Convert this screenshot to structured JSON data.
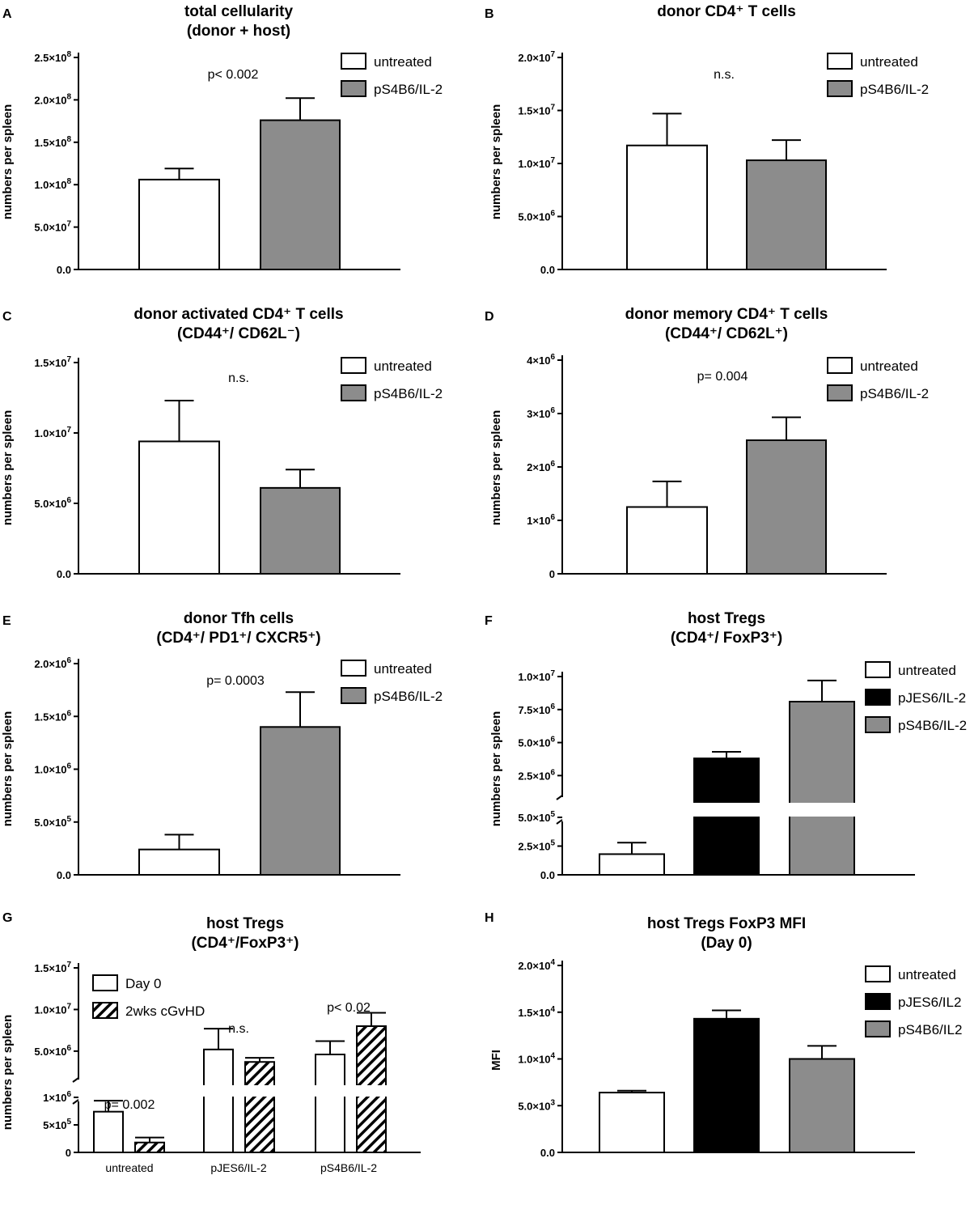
{
  "panels": [
    {
      "letter": "A",
      "title": [
        "total cellularity",
        "(donor + host)"
      ],
      "ylabel": "numbers per spleen",
      "ylim": [
        0,
        250000000
      ],
      "ticks": [
        {
          "v": 0,
          "m": "0.0"
        },
        {
          "v": 50000000,
          "m": "5.0",
          "e": "7"
        },
        {
          "v": 100000000,
          "m": "1.0",
          "e": "8"
        },
        {
          "v": 150000000,
          "m": "1.5",
          "e": "8"
        },
        {
          "v": 200000000,
          "m": "2.0",
          "e": "8"
        },
        {
          "v": 250000000,
          "m": "2.5",
          "e": "8"
        }
      ],
      "legend": [
        {
          "label": "untreated",
          "color": "#ffffff"
        },
        {
          "label": "pS4B6/IL-2",
          "color": "#8c8c8c"
        }
      ],
      "pvalue": "p< 0.002",
      "chart_data": {
        "type": "bar",
        "title": "total cellularity (donor + host)",
        "ylabel": "numbers per spleen",
        "categories": [
          "untreated",
          "pS4B6/IL-2"
        ],
        "values": [
          106000000,
          176000000
        ],
        "error": [
          13000000,
          26000000
        ],
        "colors": [
          "#ffffff",
          "#8c8c8c"
        ]
      }
    },
    {
      "letter": "B",
      "title": [
        "donor CD4⁺ T cells"
      ],
      "ylabel": "numbers per spleen",
      "ylim": [
        0,
        20000000
      ],
      "ticks": [
        {
          "v": 0,
          "m": "0.0"
        },
        {
          "v": 5000000,
          "m": "5.0",
          "e": "6"
        },
        {
          "v": 10000000,
          "m": "1.0",
          "e": "7"
        },
        {
          "v": 15000000,
          "m": "1.5",
          "e": "7"
        },
        {
          "v": 20000000,
          "m": "2.0",
          "e": "7"
        }
      ],
      "legend": [
        {
          "label": "untreated",
          "color": "#ffffff"
        },
        {
          "label": "pS4B6/IL-2",
          "color": "#8c8c8c"
        }
      ],
      "pvalue": "n.s.",
      "chart_data": {
        "type": "bar",
        "title": "donor CD4+ T cells",
        "ylabel": "numbers per spleen",
        "categories": [
          "untreated",
          "pS4B6/IL-2"
        ],
        "values": [
          11700000,
          10300000
        ],
        "error": [
          3000000,
          1900000
        ],
        "colors": [
          "#ffffff",
          "#8c8c8c"
        ]
      }
    },
    {
      "letter": "C",
      "title": [
        "donor activated CD4⁺ T cells",
        "(CD44⁺/ CD62L⁻)"
      ],
      "ylabel": "numbers per spleen",
      "ylim": [
        0,
        15000000
      ],
      "ticks": [
        {
          "v": 0,
          "m": "0.0"
        },
        {
          "v": 5000000,
          "m": "5.0",
          "e": "6"
        },
        {
          "v": 10000000,
          "m": "1.0",
          "e": "7"
        },
        {
          "v": 15000000,
          "m": "1.5",
          "e": "7"
        }
      ],
      "legend": [
        {
          "label": "untreated",
          "color": "#ffffff"
        },
        {
          "label": "pS4B6/IL-2",
          "color": "#8c8c8c"
        }
      ],
      "pvalue": "n.s.",
      "chart_data": {
        "type": "bar",
        "title": "donor activated CD4+ T cells (CD44+/ CD62L-)",
        "ylabel": "numbers per spleen",
        "categories": [
          "untreated",
          "pS4B6/IL-2"
        ],
        "values": [
          9400000,
          6100000
        ],
        "error": [
          2900000,
          1300000
        ],
        "colors": [
          "#ffffff",
          "#8c8c8c"
        ]
      }
    },
    {
      "letter": "D",
      "title": [
        "donor memory CD4⁺  T cells",
        "(CD44⁺/ CD62L⁺)"
      ],
      "ylabel": "numbers per spleen",
      "ylim": [
        0,
        4000000
      ],
      "ticks": [
        {
          "v": 0,
          "m": "0"
        },
        {
          "v": 1000000,
          "m": "1",
          "e": "6"
        },
        {
          "v": 2000000,
          "m": "2",
          "e": "6"
        },
        {
          "v": 3000000,
          "m": "3",
          "e": "6"
        },
        {
          "v": 4000000,
          "m": "4",
          "e": "6"
        }
      ],
      "legend": [
        {
          "label": "untreated",
          "color": "#ffffff"
        },
        {
          "label": "pS4B6/IL-2",
          "color": "#8c8c8c"
        }
      ],
      "pvalue": "p= 0.004",
      "chart_data": {
        "type": "bar",
        "title": "donor memory CD4+ T cells (CD44+/ CD62L+)",
        "ylabel": "numbers per spleen",
        "categories": [
          "untreated",
          "pS4B6/IL-2"
        ],
        "values": [
          1250000,
          2500000
        ],
        "error": [
          480000,
          430000
        ],
        "colors": [
          "#ffffff",
          "#8c8c8c"
        ]
      }
    },
    {
      "letter": "E",
      "title": [
        "donor Tfh cells",
        "(CD4⁺/ PD1⁺/ CXCR5⁺)"
      ],
      "ylabel": "numbers per spleen",
      "ylim": [
        0,
        2000000
      ],
      "ticks": [
        {
          "v": 0,
          "m": "0.0"
        },
        {
          "v": 500000,
          "m": "5.0",
          "e": "5"
        },
        {
          "v": 1000000,
          "m": "1.0",
          "e": "6"
        },
        {
          "v": 1500000,
          "m": "1.5",
          "e": "6"
        },
        {
          "v": 2000000,
          "m": "2.0",
          "e": "6"
        }
      ],
      "legend": [
        {
          "label": "untreated",
          "color": "#ffffff"
        },
        {
          "label": "pS4B6/IL-2",
          "color": "#8c8c8c"
        }
      ],
      "pvalue": "p= 0.0003",
      "chart_data": {
        "type": "bar",
        "title": "donor Tfh cells (CD4+/ PD1+/ CXCR5+)",
        "ylabel": "numbers per spleen",
        "categories": [
          "untreated",
          "pS4B6/IL-2"
        ],
        "values": [
          240000,
          1400000
        ],
        "error": [
          140000,
          330000
        ],
        "colors": [
          "#ffffff",
          "#8c8c8c"
        ]
      }
    },
    {
      "letter": "F",
      "title": [
        "host Tregs",
        "(CD4⁺/ FoxP3⁺)"
      ],
      "ylabel": "numbers per spleen",
      "broken": true,
      "lower": [
        0,
        500000
      ],
      "upper": [
        500000,
        10000000
      ],
      "ticks": [
        {
          "v": 0,
          "m": "0.0"
        },
        {
          "v": 250000,
          "m": "2.5",
          "e": "5"
        },
        {
          "v": 500000,
          "m": "5.0",
          "e": "5"
        },
        {
          "v": 2500000,
          "m": "2.5",
          "e": "6"
        },
        {
          "v": 5000000,
          "m": "5.0",
          "e": "6"
        },
        {
          "v": 7500000,
          "m": "7.5",
          "e": "6"
        },
        {
          "v": 10000000,
          "m": "1.0",
          "e": "7"
        }
      ],
      "legend": [
        {
          "label": "untreated",
          "color": "#ffffff"
        },
        {
          "label": "pJES6/IL-2",
          "color": "#000000"
        },
        {
          "label": "pS4B6/IL-2",
          "color": "#8c8c8c"
        }
      ],
      "chart_data": {
        "type": "bar",
        "title": "host Tregs (CD4+/ FoxP3+)",
        "ylabel": "numbers per spleen",
        "categories": [
          "untreated",
          "pJES6/IL-2",
          "pS4B6/IL-2"
        ],
        "values": [
          180000,
          3800000,
          8100000
        ],
        "error": [
          100000,
          500000,
          1600000
        ],
        "colors": [
          "#ffffff",
          "#000000",
          "#8c8c8c"
        ]
      }
    },
    {
      "letter": "G",
      "title": [
        "host Tregs",
        "(CD4⁺/FoxP3⁺)"
      ],
      "ylabel": "numbers per spleen",
      "broken": true,
      "lower": [
        0,
        1000000
      ],
      "upper": [
        1000000,
        15000000
      ],
      "ticks": [
        {
          "v": 0,
          "m": "0"
        },
        {
          "v": 500000,
          "m": "5",
          "e": "5"
        },
        {
          "v": 1000000,
          "m": "1",
          "e": "6"
        },
        {
          "v": 5000000,
          "m": "5.0",
          "e": "6"
        },
        {
          "v": 10000000,
          "m": "1.0",
          "e": "7"
        },
        {
          "v": 15000000,
          "m": "1.5",
          "e": "7"
        }
      ],
      "legend": [
        {
          "label": "Day 0",
          "color": "#ffffff"
        },
        {
          "label": "2wks cGvHD",
          "color": "hatch"
        }
      ],
      "group_pvalues": [
        "p= 0.002",
        "n.s.",
        "p< 0.02"
      ],
      "chart_data": {
        "type": "bar",
        "title": "host Tregs (CD4+/FoxP3+)",
        "ylabel": "numbers per spleen",
        "categories": [
          "untreated",
          "pJES6/IL-2",
          "pS4B6/IL-2"
        ],
        "series": [
          {
            "name": "Day 0",
            "values": [
              740000,
              5200000,
              4600000
            ],
            "error": [
              200000,
              2500000,
              1600000
            ]
          },
          {
            "name": "2wks cGvHD",
            "values": [
              180000,
              3700000,
              8000000
            ],
            "error": [
              90000,
              500000,
              1600000
            ]
          }
        ]
      }
    },
    {
      "letter": "H",
      "title": [
        "host Tregs FoxP3 MFI",
        "(Day 0)"
      ],
      "ylabel": "MFI",
      "ylim": [
        0,
        20000
      ],
      "ticks": [
        {
          "v": 0,
          "m": "0.0"
        },
        {
          "v": 5000,
          "m": "5.0",
          "e": "3"
        },
        {
          "v": 10000,
          "m": "1.0",
          "e": "4"
        },
        {
          "v": 15000,
          "m": "1.5",
          "e": "4"
        },
        {
          "v": 20000,
          "m": "2.0",
          "e": "4"
        }
      ],
      "legend": [
        {
          "label": "untreated",
          "color": "#ffffff"
        },
        {
          "label": "pJES6/IL2",
          "color": "#000000"
        },
        {
          "label": "pS4B6/IL2",
          "color": "#8c8c8c"
        }
      ],
      "chart_data": {
        "type": "bar",
        "title": "host Tregs FoxP3 MFI (Day 0)",
        "ylabel": "MFI",
        "categories": [
          "untreated",
          "pJES6/IL2",
          "pS4B6/IL2"
        ],
        "values": [
          6400,
          14300,
          10000
        ],
        "error": [
          200,
          900,
          1400
        ],
        "colors": [
          "#ffffff",
          "#000000",
          "#8c8c8c"
        ]
      }
    }
  ]
}
